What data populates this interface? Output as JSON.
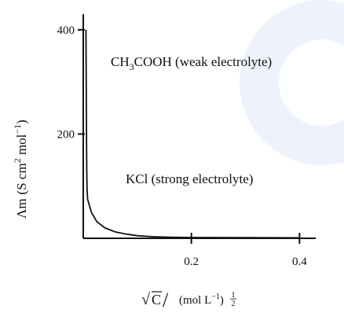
{
  "chart_data": {
    "type": "line",
    "title": "",
    "xlabel_parts": {
      "sqrt_symbol": "√",
      "sqrt_var": "C",
      "slash": "/",
      "unit_base": "(mol L",
      "unit_sup": "−1",
      "unit_close": ")",
      "exp_num": "1",
      "exp_den": "2"
    },
    "ylabel_parts": {
      "lambda": "Λm",
      "unit_open": "(S cm",
      "sup1": "2",
      "mid": " mol",
      "sup2": "−1",
      "unit_close": ")"
    },
    "x_ticks": [
      {
        "value": 0.2,
        "label": "0.2"
      },
      {
        "value": 0.4,
        "label": "0.4"
      }
    ],
    "y_ticks": [
      {
        "value": 200,
        "label": "200"
      },
      {
        "value": 400,
        "label": "400"
      }
    ],
    "xlim": [
      0,
      0.43
    ],
    "ylim": [
      0,
      430
    ],
    "series": [
      {
        "name": "CH3COOH (weak electrolyte)",
        "x": [
          0.005,
          0.0055,
          0.006,
          0.0065,
          0.007,
          0.008
        ],
        "y": [
          400,
          300,
          200,
          130,
          95,
          75
        ]
      },
      {
        "name": "KCl (strong electrolyte)",
        "x": [
          0.008,
          0.015,
          0.025,
          0.04,
          0.06,
          0.08,
          0.1,
          0.13,
          0.16,
          0.2,
          0.3,
          0.4
        ],
        "y": [
          75,
          50,
          32,
          20,
          12,
          8,
          5,
          3,
          2,
          1.5,
          1.2,
          1
        ]
      }
    ],
    "annotations": {
      "weak_prefix": "CH",
      "weak_sub": "3",
      "weak_rest": "COOH (weak electrolyte)",
      "strong": "KCl (strong electrolyte)"
    },
    "grid": false,
    "line_color": "#111111"
  }
}
